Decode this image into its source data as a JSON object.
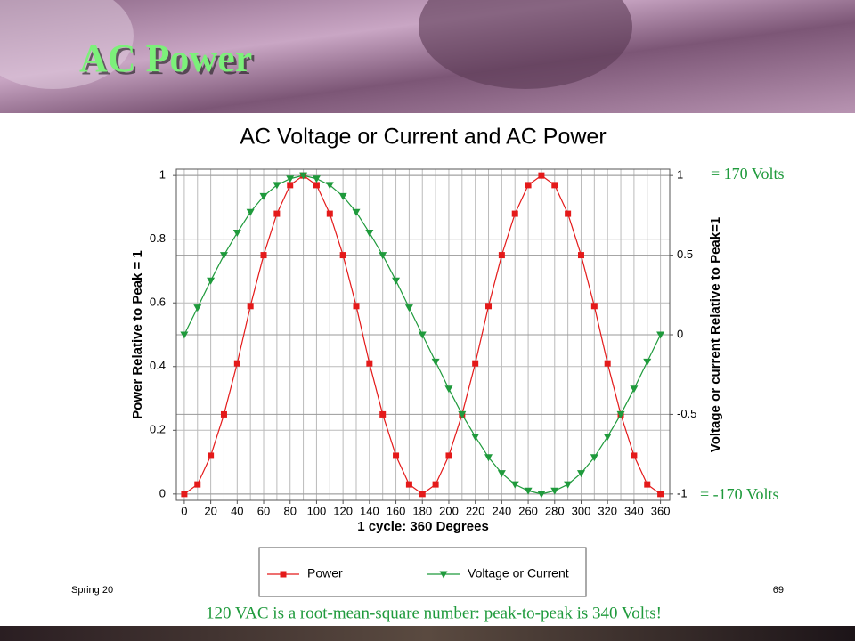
{
  "slide": {
    "title": "AC Power",
    "footer_left": "Spring 20",
    "page_number": "69",
    "caption": "120 VAC is a root-mean-square number: peak-to-peak is 340 Volts!",
    "annotations": [
      "= 170 Volts",
      "= -170 Volts"
    ]
  },
  "chart_data": {
    "type": "line",
    "title": "AC Voltage or Current and AC Power",
    "x_label": "1 cycle:  360 Degrees",
    "y_label": "Power Relative to Peak = 1",
    "y2_label": "Voltage or current Relative to Peak=1",
    "x": [
      0,
      10,
      20,
      30,
      40,
      50,
      60,
      70,
      80,
      90,
      100,
      110,
      120,
      130,
      140,
      150,
      160,
      170,
      180,
      190,
      200,
      210,
      220,
      230,
      240,
      250,
      260,
      270,
      280,
      290,
      300,
      310,
      320,
      330,
      340,
      350,
      360
    ],
    "xlim": [
      -6,
      367
    ],
    "xticks": [
      0,
      20,
      40,
      60,
      80,
      100,
      120,
      140,
      160,
      180,
      200,
      220,
      240,
      260,
      280,
      300,
      320,
      340,
      360
    ],
    "ylim": [
      -0.02,
      1.02
    ],
    "yticks": [
      0,
      0.2,
      0.4,
      0.6,
      0.8,
      1
    ],
    "y2lim": [
      -1.04,
      1.04
    ],
    "y2ticks": [
      -1,
      -0.5,
      0,
      0.5,
      1
    ],
    "grid": true,
    "legend": "bottom",
    "series": [
      {
        "name": "Power",
        "color": "#e41a1a",
        "marker": "square",
        "values": [
          0,
          0.03,
          0.12,
          0.25,
          0.41,
          0.59,
          0.75,
          0.88,
          0.97,
          1,
          0.97,
          0.88,
          0.75,
          0.59,
          0.41,
          0.25,
          0.12,
          0.03,
          0,
          0.03,
          0.12,
          0.25,
          0.41,
          0.59,
          0.75,
          0.88,
          0.97,
          1,
          0.97,
          0.88,
          0.75,
          0.59,
          0.41,
          0.25,
          0.12,
          0.03,
          0
        ]
      },
      {
        "name": "Voltage or Current",
        "color": "#1f9a3c",
        "marker": "triangle-down",
        "axis": "y2",
        "values": [
          0,
          0.17,
          0.34,
          0.5,
          0.64,
          0.77,
          0.87,
          0.94,
          0.98,
          1,
          0.98,
          0.94,
          0.87,
          0.77,
          0.64,
          0.5,
          0.34,
          0.17,
          0,
          -0.17,
          -0.34,
          -0.5,
          -0.64,
          -0.77,
          -0.87,
          -0.94,
          -0.98,
          -1,
          -0.98,
          -0.94,
          -0.87,
          -0.77,
          -0.64,
          -0.5,
          -0.34,
          -0.17,
          0
        ]
      }
    ]
  }
}
